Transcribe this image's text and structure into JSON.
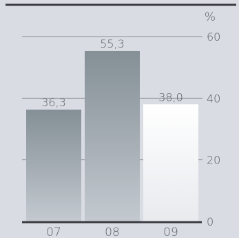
{
  "chart_data": {
    "type": "bar",
    "categories": [
      "07",
      "08",
      "09"
    ],
    "values": [
      36.3,
      55.3,
      38.0
    ],
    "value_labels": [
      "36,3",
      "55,3",
      "38,0"
    ],
    "y_unit": "%",
    "yticks": [
      0,
      20,
      40,
      60
    ],
    "ylim": [
      0,
      65
    ],
    "grid": true,
    "axis_side": "right",
    "colors": {
      "background": "#d9dce2",
      "top_rule": "#3a3d42",
      "baseline": "#3a3d42",
      "grid": "#8a9096",
      "text": "#5a5f66",
      "bar_gradient_top": "#848f96",
      "bar_gradient_bottom": "#c3c9cf",
      "highlight_gradient_top": "#ffffff",
      "highlight_gradient_bottom": "#e8eaee"
    },
    "highlight_index": 2
  }
}
